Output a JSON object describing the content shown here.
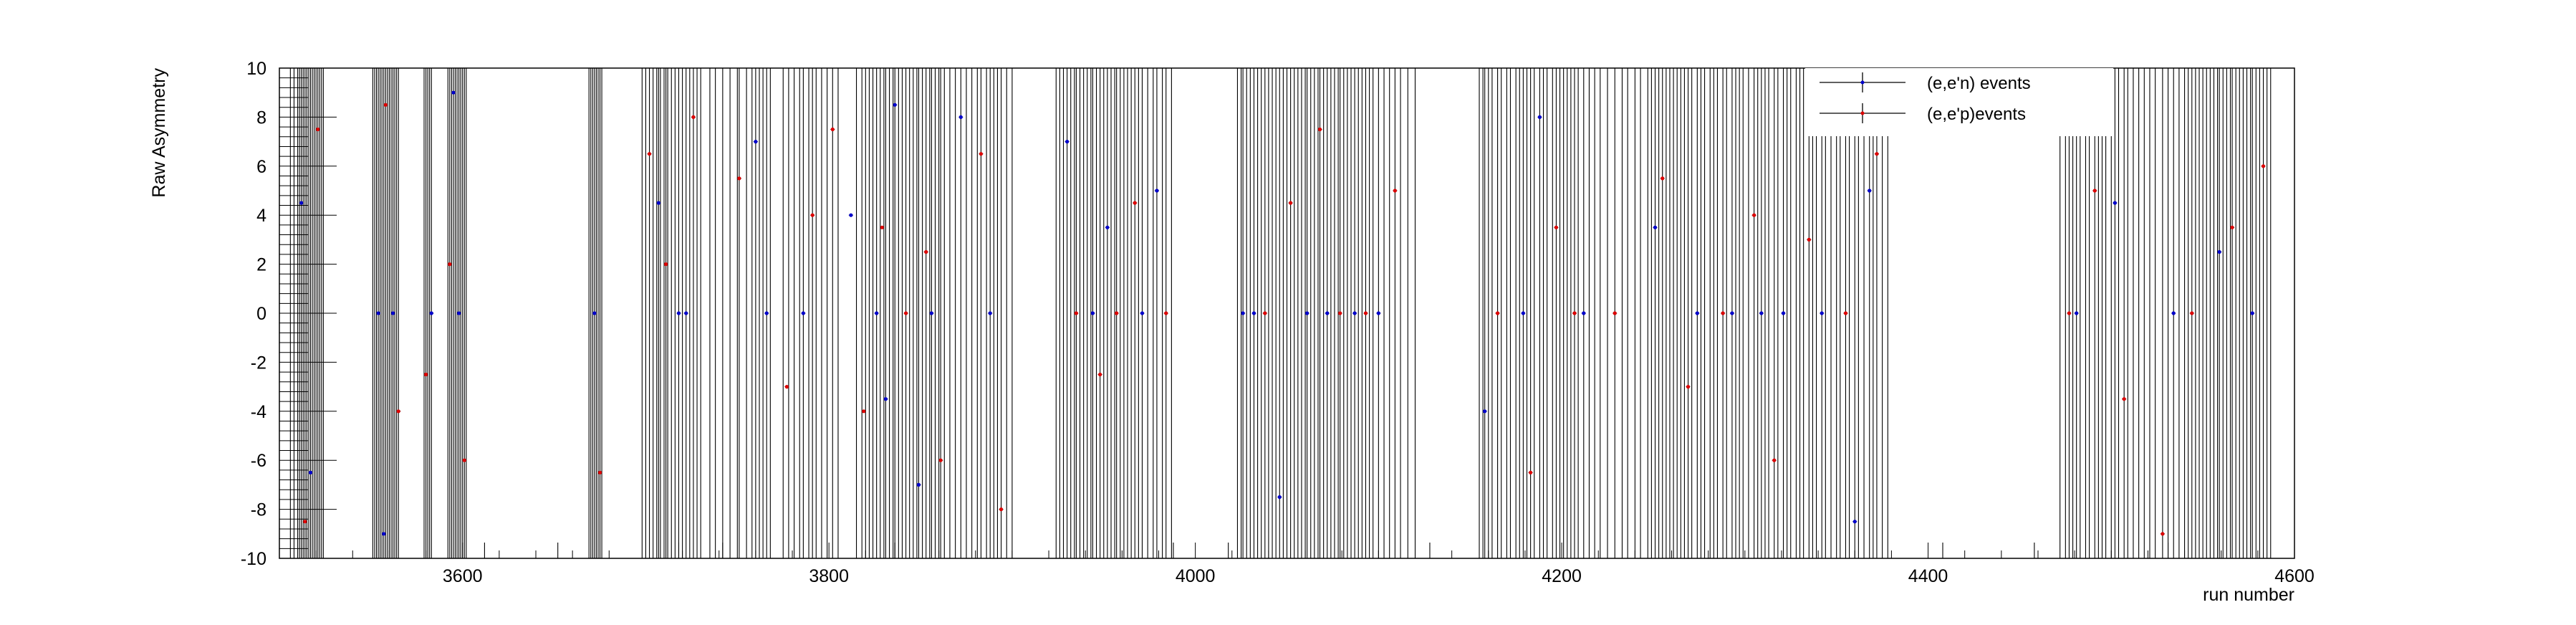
{
  "chart_data": {
    "type": "scatter",
    "xlabel": "run number",
    "ylabel": "Raw Asymmetry",
    "xlim": [
      3500,
      4600
    ],
    "ylim": [
      -10,
      10
    ],
    "x_ticks": [
      3600,
      3800,
      4000,
      4200,
      4400,
      4600
    ],
    "y_ticks": [
      -10,
      -8,
      -6,
      -4,
      -2,
      0,
      2,
      4,
      6,
      8,
      10
    ],
    "grid": false,
    "legend_position": "top-right",
    "series": [
      {
        "name": "(e,e'n) events",
        "color": "#0000cc",
        "x": [
          3512,
          3517,
          3554,
          3557,
          3562,
          3583,
          3595,
          3598,
          3672,
          3707,
          3718,
          3722,
          3760,
          3766,
          3786,
          3812,
          3826,
          3831,
          3836,
          3849,
          3856,
          3872,
          3888,
          3930,
          3944,
          3952,
          3971,
          3979,
          4026,
          4032,
          4046,
          4061,
          4072,
          4087,
          4100,
          4158,
          4179,
          4188,
          4212,
          4251,
          4274,
          4293,
          4309,
          4321,
          4342,
          4360,
          4368,
          4481,
          4502,
          4534,
          4559,
          4577
        ],
        "y": [
          4.5,
          -6.5,
          0,
          -9.0,
          0,
          0,
          9.0,
          0,
          0,
          4.5,
          0,
          0,
          7.0,
          0,
          0,
          4.0,
          0,
          -3.5,
          8.5,
          -7.0,
          0,
          8.0,
          0,
          7.0,
          0,
          3.5,
          0,
          5.0,
          0,
          0,
          -7.5,
          0,
          0,
          0,
          0,
          -4.0,
          0,
          8.0,
          0,
          3.5,
          0,
          0,
          0,
          0,
          0,
          -8.5,
          5.0,
          0,
          4.5,
          0,
          2.5,
          0
        ]
      },
      {
        "name": "(e,e'p)events",
        "color": "#dd0000",
        "x": [
          3514,
          3521,
          3558,
          3565,
          3580,
          3593,
          3601,
          3675,
          3702,
          3711,
          3726,
          3751,
          3777,
          3791,
          3802,
          3819,
          3829,
          3842,
          3853,
          3861,
          3883,
          3894,
          3935,
          3948,
          3957,
          3967,
          3984,
          4038,
          4052,
          4068,
          4079,
          4093,
          4109,
          4165,
          4183,
          4197,
          4207,
          4229,
          4255,
          4269,
          4288,
          4305,
          4316,
          4335,
          4355,
          4372,
          4477,
          4491,
          4507,
          4528,
          4544,
          4566,
          4583
        ],
        "y": [
          -8.5,
          7.5,
          8.5,
          -4.0,
          -2.5,
          2.0,
          -6.0,
          -6.5,
          6.5,
          2.0,
          8.0,
          5.5,
          -3.0,
          4.0,
          7.5,
          -4.0,
          3.5,
          0,
          2.5,
          -6.0,
          6.5,
          -8.0,
          0,
          -2.5,
          0,
          4.5,
          0,
          0,
          4.5,
          7.5,
          0,
          0,
          5.0,
          0,
          -6.5,
          3.5,
          0,
          0,
          5.5,
          -3.0,
          0,
          4.0,
          -6.0,
          3.0,
          0,
          6.5,
          0,
          5.0,
          -3.5,
          -9.0,
          0,
          3.5,
          6.0
        ]
      }
    ],
    "envelope_runs": [
      3506,
      3508,
      3510,
      3511,
      3512,
      3513,
      3514,
      3515,
      3516,
      3517,
      3518,
      3519,
      3520,
      3521,
      3522,
      3523,
      3524,
      3551,
      3552,
      3553,
      3554,
      3555,
      3556,
      3557,
      3558,
      3559,
      3560,
      3561,
      3562,
      3563,
      3564,
      3565,
      3579,
      3580,
      3581,
      3582,
      3583,
      3592,
      3593,
      3594,
      3595,
      3596,
      3597,
      3598,
      3599,
      3600,
      3601,
      3602,
      3669,
      3670,
      3671,
      3672,
      3673,
      3674,
      3675,
      3676,
      3698,
      3700,
      3702,
      3704,
      3706,
      3707,
      3708,
      3710,
      3711,
      3712,
      3714,
      3716,
      3718,
      3720,
      3722,
      3724,
      3726,
      3728,
      3730,
      3735,
      3738,
      3742,
      3746,
      3750,
      3751,
      3755,
      3758,
      3760,
      3762,
      3764,
      3766,
      3768,
      3775,
      3778,
      3781,
      3784,
      3786,
      3789,
      3791,
      3793,
      3796,
      3799,
      3802,
      3805,
      3815,
      3818,
      3820,
      3822,
      3824,
      3826,
      3828,
      3830,
      3831,
      3833,
      3835,
      3836,
      3838,
      3840,
      3842,
      3844,
      3846,
      3848,
      3849,
      3851,
      3853,
      3855,
      3856,
      3858,
      3860,
      3861,
      3863,
      3866,
      3869,
      3872,
      3875,
      3878,
      3881,
      3883,
      3886,
      3888,
      3890,
      3892,
      3894,
      3897,
      3900,
      3924,
      3926,
      3928,
      3930,
      3932,
      3934,
      3935,
      3937,
      3939,
      3941,
      3943,
      3944,
      3946,
      3948,
      3950,
      3952,
      3954,
      3956,
      3957,
      3959,
      3961,
      3963,
      3965,
      3967,
      3969,
      3971,
      3974,
      3977,
      3979,
      3982,
      3984,
      3987,
      4023,
      4025,
      4026,
      4028,
      4030,
      4032,
      4034,
      4036,
      4038,
      4040,
      4042,
      4044,
      4046,
      4048,
      4050,
      4052,
      4054,
      4056,
      4058,
      4060,
      4061,
      4063,
      4065,
      4067,
      4068,
      4070,
      4072,
      4074,
      4076,
      4078,
      4079,
      4081,
      4083,
      4085,
      4087,
      4089,
      4091,
      4093,
      4095,
      4097,
      4100,
      4103,
      4106,
      4109,
      4112,
      4116,
      4120,
      4155,
      4157,
      4158,
      4160,
      4162,
      4165,
      4167,
      4170,
      4172,
      4175,
      4177,
      4179,
      4181,
      4183,
      4185,
      4188,
      4190,
      4192,
      4195,
      4197,
      4199,
      4201,
      4203,
      4205,
      4207,
      4209,
      4212,
      4215,
      4218,
      4221,
      4225,
      4229,
      4233,
      4236,
      4240,
      4243,
      4247,
      4249,
      4251,
      4253,
      4255,
      4257,
      4259,
      4261,
      4263,
      4265,
      4267,
      4269,
      4271,
      4274,
      4276,
      4278,
      4281,
      4283,
      4285,
      4288,
      4290,
      4293,
      4295,
      4297,
      4299,
      4302,
      4305,
      4307,
      4309,
      4311,
      4313,
      4316,
      4318,
      4321,
      4323,
      4325,
      4328,
      4330,
      4332,
      4335,
      4337,
      4339,
      4342,
      4344,
      4347,
      4350,
      4352,
      4355,
      4357,
      4360,
      4362,
      4365,
      4368,
      4370,
      4372,
      4375,
      4378,
      4472,
      4475,
      4477,
      4479,
      4481,
      4483,
      4486,
      4488,
      4491,
      4493,
      4495,
      4497,
      4500,
      4502,
      4504,
      4507,
      4509,
      4512,
      4515,
      4518,
      4521,
      4524,
      4528,
      4531,
      4534,
      4537,
      4540,
      4542,
      4544,
      4546,
      4548,
      4550,
      4552,
      4554,
      4556,
      4558,
      4559,
      4561,
      4563,
      4565,
      4566,
      4568,
      4570,
      4572,
      4574,
      4576,
      4577,
      4579,
      4581,
      4583,
      4585,
      4587
    ],
    "short_bar_runs": [
      3612,
      3652,
      3718,
      3742,
      3836,
      3988,
      4018,
      4128,
      4408,
      4458,
      4531
    ]
  }
}
